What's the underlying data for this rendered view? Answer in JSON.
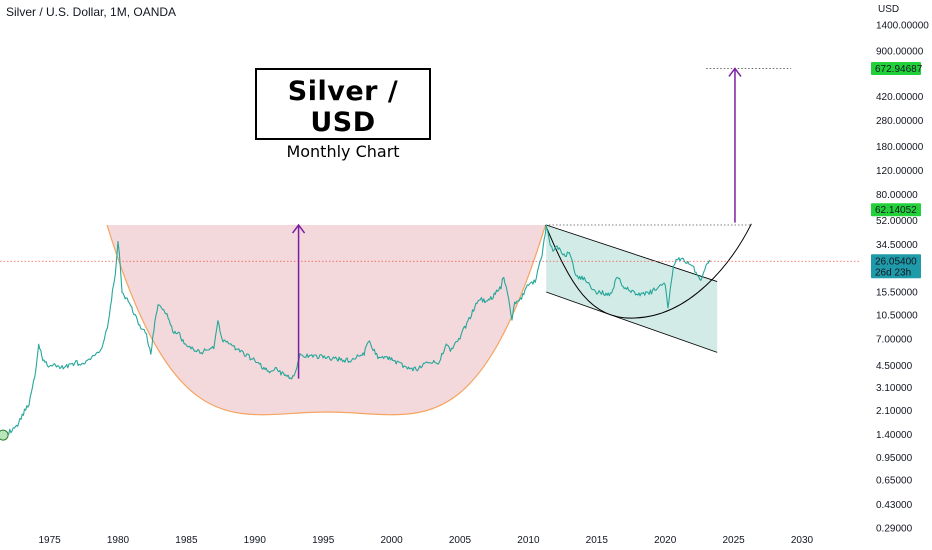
{
  "header": {
    "symbol_title": "Silver / U.S. Dollar, 1M, OANDA",
    "currency": "USD"
  },
  "title_box": {
    "title": "Silver / USD",
    "subtitle": "Monthly Chart"
  },
  "colors": {
    "candle_up": "#26a69a",
    "cup_fill": "#f2d2d6",
    "cup_stroke": "#f4a460",
    "channel_fill": "#cde9e3",
    "arrow": "#7b1fa2",
    "price_line": "#ef5350",
    "label_green": "#22d13a",
    "label_teal": "#1e9aa8"
  },
  "chart_data": {
    "type": "line",
    "y_scale": "log",
    "ylim": [
      0.29,
      1400
    ],
    "xlim": [
      1971.5,
      2031.5
    ],
    "y_ticks": [
      "1400.00000",
      "900.00000",
      "420.00000",
      "280.00000",
      "180.00000",
      "120.00000",
      "80.00000",
      "52.00000",
      "34.50000",
      "15.50000",
      "10.50000",
      "7.00000",
      "4.50000",
      "3.10000",
      "2.10000",
      "1.40000",
      "0.95000",
      "0.65000",
      "0.43000",
      "0.29000"
    ],
    "x_ticks": [
      "1975",
      "1980",
      "1985",
      "1990",
      "1995",
      "2000",
      "2005",
      "2010",
      "2015",
      "2020",
      "2025",
      "2030"
    ],
    "price_labels": {
      "target": "672.94687",
      "resistance": "62.14052",
      "current": "26.05400",
      "countdown": "26d 23h"
    },
    "series": [
      {
        "x": [
          1971.6,
          1972.5,
          1973.5,
          1974.0,
          1974.2,
          1974.5,
          1975.0,
          1975.5,
          1976.0,
          1976.5,
          1977.0,
          1977.5,
          1978.0,
          1978.5,
          1979.0,
          1979.3,
          1979.6,
          1979.8,
          1980.0,
          1980.1,
          1980.3,
          1980.6,
          1981.0,
          1981.5,
          1982.0,
          1982.4,
          1982.7,
          1983.0,
          1983.5,
          1984.0,
          1984.5,
          1985.0,
          1986.0,
          1987.0,
          1987.3,
          1987.6,
          1988.0,
          1989.0,
          1990.0,
          1991.0,
          1991.5,
          1992.0,
          1992.7,
          1993.0,
          1993.3,
          1994.0,
          1995.0,
          1996.0,
          1997.0,
          1998.0,
          1998.3,
          1999.0,
          2000.0,
          2001.0,
          2001.8,
          2002.5,
          2003.5,
          2004.0,
          2004.3,
          2005.0,
          2006.0,
          2006.4,
          2007.0,
          2008.0,
          2008.2,
          2008.8,
          2009.0,
          2009.5,
          2010.0,
          2010.5,
          2011.0,
          2011.3,
          2011.6,
          2011.8,
          2012.0,
          2012.7,
          2013.0,
          2013.5,
          2014.0,
          2015.0,
          2016.0,
          2016.5,
          2017.0,
          2018.0,
          2019.0,
          2019.5,
          2020.0,
          2020.2,
          2020.6,
          2020.8,
          2021.0,
          2021.5,
          2022.0,
          2022.6,
          2022.8,
          2023.0,
          2023.3
        ],
        "y": [
          1.39,
          1.55,
          2.4,
          4.2,
          6.5,
          4.9,
          4.4,
          4.5,
          4.3,
          4.6,
          4.7,
          4.5,
          5.1,
          5.4,
          6.8,
          9.5,
          15.5,
          21.0,
          36.0,
          30.0,
          15.0,
          14.0,
          12.0,
          9.0,
          8.0,
          5.5,
          9.5,
          13.0,
          11.0,
          8.0,
          7.5,
          6.2,
          5.6,
          6.0,
          9.8,
          7.0,
          6.5,
          5.6,
          4.9,
          4.0,
          4.3,
          3.9,
          3.6,
          4.2,
          5.4,
          5.2,
          5.2,
          5.0,
          4.9,
          5.5,
          6.8,
          5.2,
          5.0,
          4.4,
          4.2,
          4.6,
          4.8,
          6.6,
          5.8,
          7.2,
          11.5,
          14.0,
          13.0,
          17.0,
          20.5,
          10.0,
          13.0,
          14.0,
          17.5,
          18.5,
          29.0,
          48.0,
          35.0,
          32.0,
          34.0,
          28.0,
          31.0,
          20.0,
          19.5,
          15.5,
          15.0,
          20.0,
          17.0,
          15.0,
          15.5,
          17.0,
          17.5,
          12.0,
          24.0,
          26.0,
          27.0,
          26.0,
          24.0,
          18.5,
          21.0,
          24.0,
          26.05
        ]
      }
    ],
    "annotations": [
      {
        "type": "cup-and-handle",
        "label": ""
      }
    ]
  }
}
